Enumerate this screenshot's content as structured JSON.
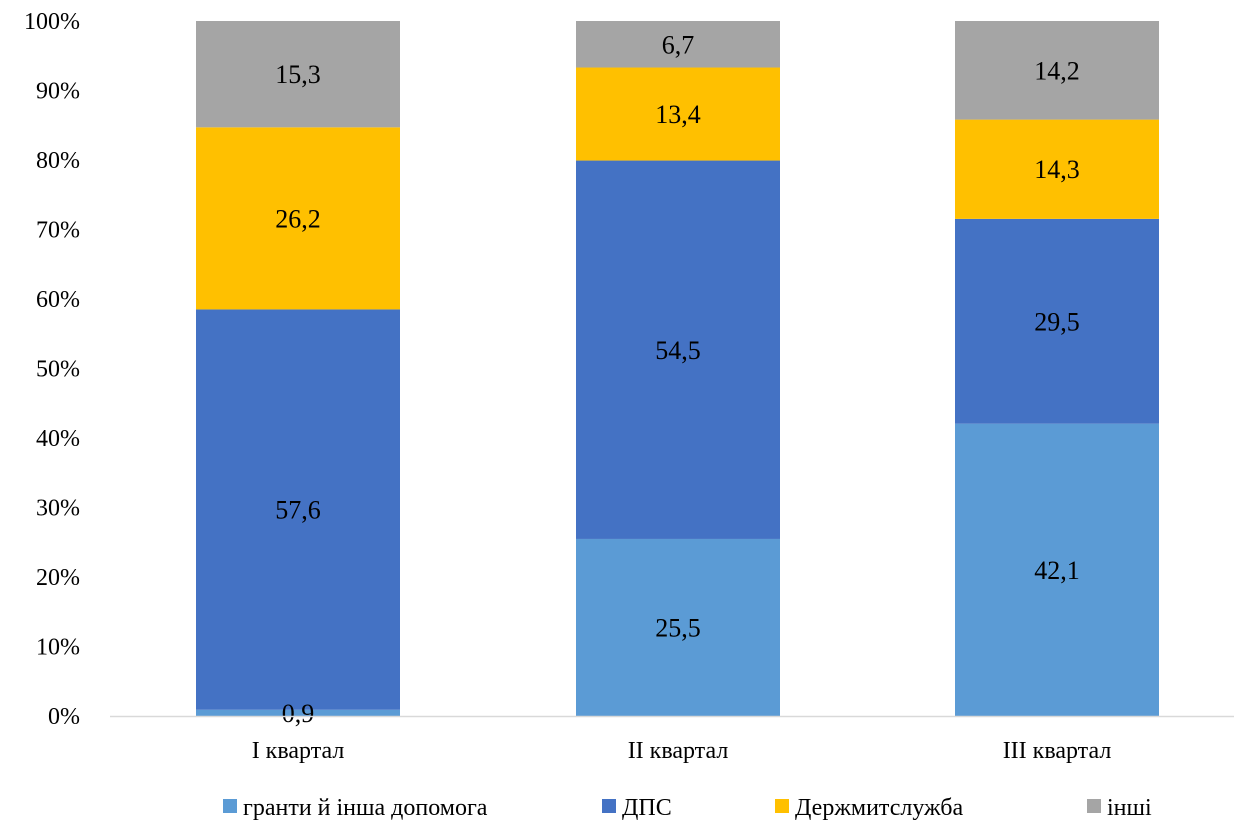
{
  "chart_data": {
    "type": "bar",
    "stacked": "percent",
    "categories": [
      "I квартал",
      "II квартал",
      "III квартал"
    ],
    "series": [
      {
        "name": "гранти й інша допомога",
        "color": "#5B9BD5",
        "values": [
          0.9,
          25.5,
          42.1
        ]
      },
      {
        "name": "ДПС",
        "color": "#4472C4",
        "values": [
          57.6,
          54.5,
          29.5
        ]
      },
      {
        "name": "Держмитслужба",
        "color": "#FFC000",
        "values": [
          26.2,
          13.4,
          14.3
        ]
      },
      {
        "name": "інші",
        "color": "#A5A5A5",
        "values": [
          15.3,
          6.7,
          14.2
        ]
      }
    ],
    "yticks": [
      "0%",
      "10%",
      "20%",
      "30%",
      "40%",
      "50%",
      "60%",
      "70%",
      "80%",
      "90%",
      "100%"
    ],
    "ylim": [
      0,
      100
    ],
    "grid": false,
    "legend": "bottom",
    "title": "",
    "xlabel": "",
    "ylabel": ""
  }
}
